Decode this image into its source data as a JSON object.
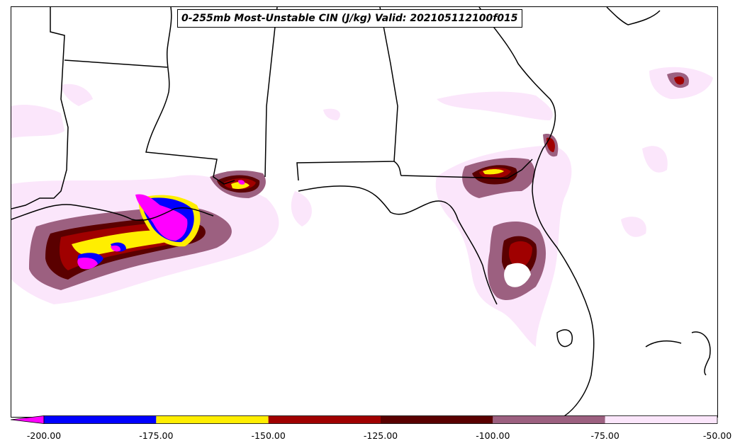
{
  "title": "0-255mb Most-Unstable CIN (J/kg) Valid: 202105112100f015",
  "colorbar": {
    "ticks": [
      "-200.00",
      "-175.00",
      "-150.00",
      "-125.00",
      "-100.00",
      "-75.00",
      "-50.00"
    ],
    "tick_values": [
      -200,
      -175,
      -150,
      -125,
      -100,
      -75,
      -50
    ],
    "bands": [
      {
        "from": -200,
        "to": -175,
        "color": "#0000ff"
      },
      {
        "from": -175,
        "to": -150,
        "color": "#ffee00"
      },
      {
        "from": -150,
        "to": -125,
        "color": "#a00000"
      },
      {
        "from": -125,
        "to": -100,
        "color": "#5a0000"
      },
      {
        "from": -100,
        "to": -75,
        "color": "#9c6080"
      },
      {
        "from": -75,
        "to": -50,
        "color": "#fbe6fb"
      }
    ],
    "extend_color": "#ff00ff"
  }
}
